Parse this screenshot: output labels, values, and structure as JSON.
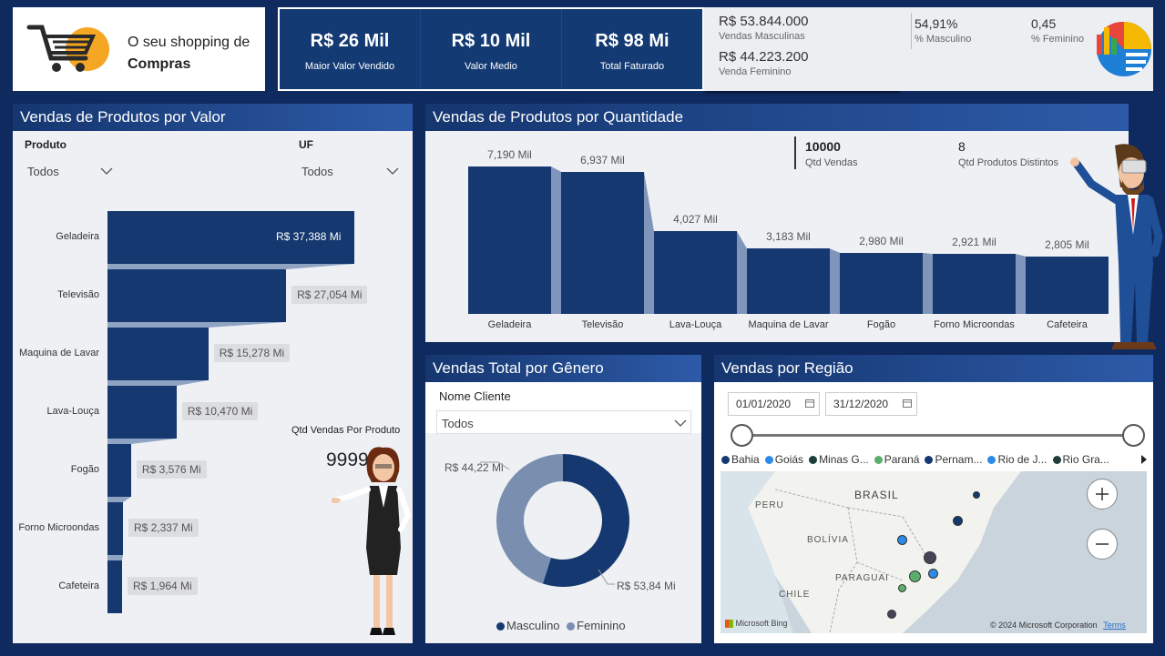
{
  "header": {
    "logo_line1": "O seu shopping de",
    "logo_line2": "Compras",
    "kpis": [
      {
        "value": "R$ 26 Mil",
        "label": "Maior Valor Vendido"
      },
      {
        "value": "R$ 10 Mil",
        "label": "Valor Medio"
      },
      {
        "value": "R$ 98 Mi",
        "label": "Total Faturado"
      }
    ],
    "sales": [
      {
        "value": "R$ 53.844.000",
        "label": "Vendas Masculinas"
      },
      {
        "value": "R$ 44.223.200",
        "label": "Venda Feminino"
      }
    ],
    "pct": [
      {
        "value": "54,91%",
        "label": "% Masculino"
      },
      {
        "value": "0,45",
        "label": "% Feminino"
      }
    ]
  },
  "valor_panel": {
    "title": "Vendas de Produtos por Valor",
    "filter_produto_label": "Produto",
    "filter_produto_value": "Todos",
    "filter_uf_label": "UF",
    "filter_uf_value": "Todos",
    "qtd_label": "Qtd Vendas Por Produto",
    "qtd_value": "9999"
  },
  "quantidade_panel": {
    "title": "Vendas de Produtos por Quantidade",
    "qtd_vendas_value": "10000",
    "qtd_vendas_label": "Qtd Vendas",
    "qtd_produtos_value": "8",
    "qtd_produtos_label": "Qtd Produtos Distintos"
  },
  "genero_panel": {
    "title": "Vendas Total por Gênero",
    "filter_label": "Nome Cliente",
    "filter_value": "Todos",
    "label_feminino": "R$ 44,22 Mi",
    "label_masculino": "R$ 53,84 Mi",
    "legend": [
      {
        "name": "Masculino",
        "color": "#14386f"
      },
      {
        "name": "Feminino",
        "color": "#7a8fb0"
      }
    ]
  },
  "regiao_panel": {
    "title": "Vendas por Região",
    "date_start": "01/01/2020",
    "date_end": "31/12/2020",
    "regions": [
      {
        "name": "Bahia",
        "color": "#14386f"
      },
      {
        "name": "Goiás",
        "color": "#2b8be6"
      },
      {
        "name": "Minas G...",
        "color": "#1c3d3a"
      },
      {
        "name": "Paraná",
        "color": "#5aae6b"
      },
      {
        "name": "Pernam...",
        "color": "#14386f"
      },
      {
        "name": "Rio de J...",
        "color": "#2b8be6"
      },
      {
        "name": "Rio Gra...",
        "color": "#1c3d3a"
      }
    ],
    "map_labels": {
      "brasil": "BRASIL",
      "peru": "PERU",
      "bolivia": "BOLÍVIA",
      "paraguai": "PARAGUAI",
      "chile": "CHILE"
    },
    "bing": "Microsoft Bing",
    "copyright": "© 2024 Microsoft Corporation",
    "terms": "Terms"
  },
  "chart_data": [
    {
      "type": "bar",
      "title": "Vendas de Produtos por Valor",
      "categories": [
        "Geladeira",
        "Televisão",
        "Maquina de Lavar",
        "Lava-Louça",
        "Fogão",
        "Forno Microondas",
        "Cafeteira"
      ],
      "values": [
        37.388,
        27.054,
        15.278,
        10.47,
        3.576,
        2.337,
        1.964
      ],
      "labels": [
        "R$ 37,388 Mi",
        "R$ 27,054 Mi",
        "R$ 15,278 Mi",
        "R$ 10,470 Mi",
        "R$ 3,576 Mi",
        "R$ 2,337 Mi",
        "R$ 1,964 Mi"
      ]
    },
    {
      "type": "bar",
      "title": "Vendas de Produtos por Quantidade",
      "categories": [
        "Geladeira",
        "Televisão",
        "Lava-Louça",
        "Maquina de Lavar",
        "Fogão",
        "Forno Microondas",
        "Cafeteira"
      ],
      "values": [
        7190,
        6937,
        4027,
        3183,
        2980,
        2921,
        2805
      ],
      "labels": [
        "7,190 Mil",
        "6,937 Mil",
        "4,027 Mil",
        "3,183 Mil",
        "2,980 Mil",
        "2,921 Mil",
        "2,805 Mil"
      ]
    },
    {
      "type": "pie",
      "title": "Vendas Total por Gênero",
      "categories": [
        "Masculino",
        "Feminino"
      ],
      "values": [
        53.84,
        44.22
      ]
    }
  ]
}
